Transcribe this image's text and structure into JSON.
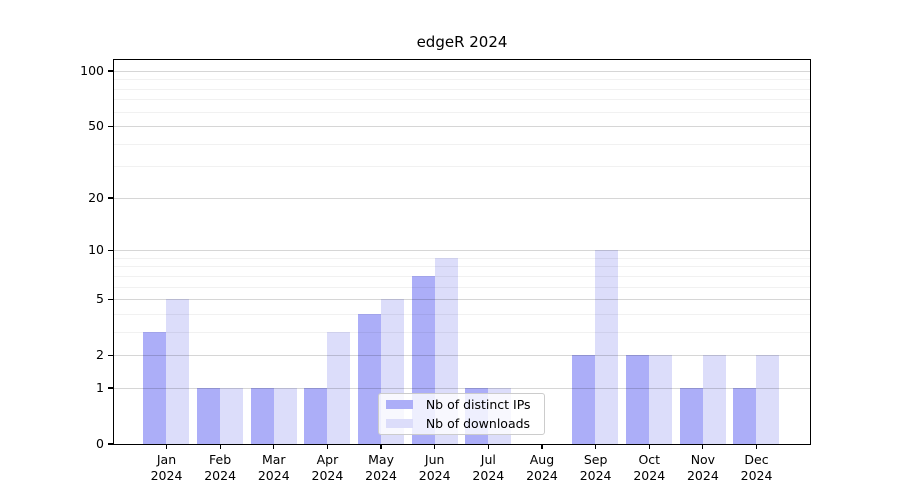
{
  "chart_data": {
    "type": "bar",
    "title": "edgeR 2024",
    "categories": [
      "Jan",
      "Feb",
      "Mar",
      "Apr",
      "May",
      "Jun",
      "Jul",
      "Aug",
      "Sep",
      "Oct",
      "Nov",
      "Dec"
    ],
    "category_year_label": "2024",
    "series": [
      {
        "name": "Nb of distinct IPs",
        "color": "#acaef8",
        "values": [
          3,
          1,
          1,
          1,
          4,
          7,
          1,
          0,
          2,
          2,
          1,
          1
        ]
      },
      {
        "name": "Nb of downloads",
        "color": "#dcddfa",
        "values": [
          5,
          1,
          1,
          3,
          5,
          9,
          1,
          0,
          10,
          2,
          2,
          2
        ]
      }
    ],
    "yscale": "log1p",
    "ylim": [
      0,
      113
    ],
    "yticks": [
      {
        "value": 100,
        "label": "100"
      },
      {
        "value": 50,
        "label": "50"
      },
      {
        "value": 20,
        "label": "20"
      },
      {
        "value": 10,
        "label": "10"
      },
      {
        "value": 5,
        "label": "5"
      },
      {
        "value": 2,
        "label": "2"
      },
      {
        "value": 1,
        "label": "1"
      },
      {
        "value": 0,
        "label": "0"
      }
    ],
    "minor_yticks": [
      3,
      4,
      6,
      7,
      8,
      9,
      30,
      40,
      60,
      70,
      80,
      90
    ],
    "grid": true,
    "legend_position": "inside-bottom-center"
  }
}
